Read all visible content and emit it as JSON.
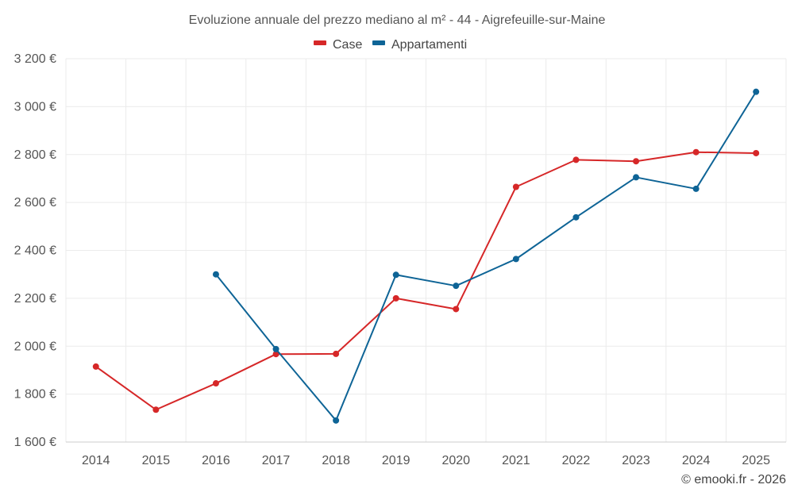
{
  "chart_data": {
    "type": "line",
    "title": "Evoluzione annuale del prezzo mediano al m² - 44 - Aigrefeuille-sur-Maine",
    "categories": [
      "2014",
      "2015",
      "2016",
      "2017",
      "2018",
      "2019",
      "2020",
      "2021",
      "2022",
      "2023",
      "2024",
      "2025"
    ],
    "ylim": [
      1600,
      3200
    ],
    "yticks": [
      1600,
      1800,
      2000,
      2200,
      2400,
      2600,
      2800,
      3000,
      3200
    ],
    "ytick_labels": [
      "1 600 €",
      "1 800 €",
      "2 000 €",
      "2 200 €",
      "2 400 €",
      "2 600 €",
      "2 800 €",
      "3 000 €",
      "3 200 €"
    ],
    "grid": true,
    "legend_position": "top-center",
    "series": [
      {
        "name": "Case",
        "color": "#d62728",
        "values": [
          1915,
          1735,
          1845,
          1967,
          1968,
          2200,
          2155,
          2665,
          2778,
          2772,
          2810,
          2806
        ]
      },
      {
        "name": "Appartamenti",
        "color": "#0e6496",
        "values": [
          null,
          null,
          2300,
          1988,
          1690,
          2298,
          2252,
          2364,
          2538,
          2705,
          2657,
          3062
        ]
      }
    ],
    "credit": "© emooki.fr - 2026"
  }
}
